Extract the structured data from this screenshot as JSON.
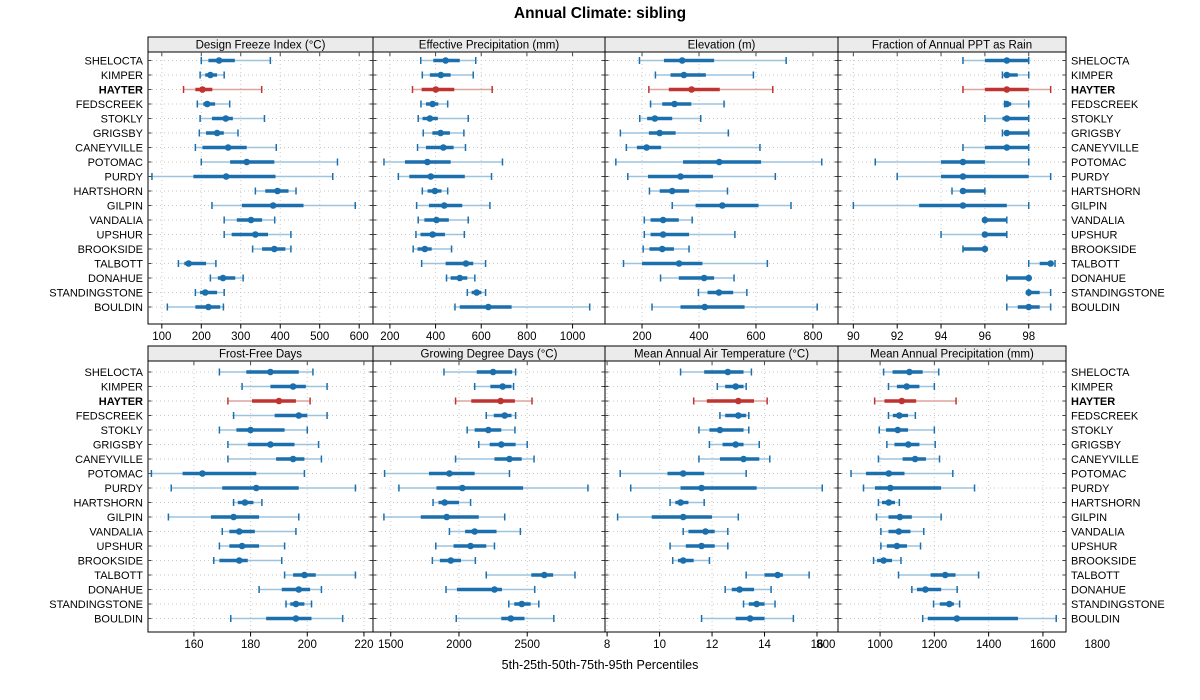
{
  "title": "Annual Climate: sibling",
  "xlabel": "5th-25th-50th-75th-95th Percentiles",
  "colors": {
    "accent_blue": "#1b6fad",
    "accent_blue_light": "#9dc4dd",
    "highlight_red": "#bf3430",
    "highlight_red_light": "#dea49d",
    "strip_bg": "#ebebeb",
    "grid": "#c9c9c9",
    "border": "#000000",
    "tick": "#444444"
  },
  "chart_data": {
    "type": "scatter",
    "subtype": "percentile-dotplot-trellis",
    "percentile_labels": [
      "5th",
      "25th",
      "50th",
      "75th",
      "95th"
    ],
    "legend_position": "none",
    "grid": "dotted both axes",
    "highlight": "HAYTER",
    "categories": [
      "SHELOCTA",
      "KIMPER",
      "HAYTER",
      "FEDSCREEK",
      "STOKLY",
      "GRIGSBY",
      "CANEYVILLE",
      "POTOMAC",
      "PURDY",
      "HARTSHORN",
      "GILPIN",
      "VANDALIA",
      "UPSHUR",
      "BROOKSIDE",
      "TALBOTT",
      "DONAHUE",
      "STANDINGSTONE",
      "BOULDIN"
    ],
    "panels": [
      {
        "id": "design-freeze-index",
        "title": "Design Freeze Index (°C)",
        "xlim": [
          65,
          635
        ],
        "ticks": [
          100,
          200,
          300,
          400,
          500,
          600
        ],
        "values": [
          [
            200,
            218,
            245,
            285,
            375
          ],
          [
            197,
            210,
            223,
            240,
            258
          ],
          [
            155,
            185,
            203,
            228,
            353
          ],
          [
            190,
            205,
            215,
            235,
            272
          ],
          [
            197,
            227,
            262,
            280,
            360
          ],
          [
            195,
            212,
            240,
            257,
            293
          ],
          [
            185,
            203,
            268,
            315,
            390
          ],
          [
            200,
            273,
            315,
            385,
            545
          ],
          [
            75,
            180,
            263,
            388,
            533
          ],
          [
            337,
            362,
            393,
            421,
            440
          ],
          [
            227,
            303,
            382,
            459,
            590
          ],
          [
            258,
            290,
            326,
            354,
            386
          ],
          [
            258,
            277,
            337,
            369,
            427
          ],
          [
            330,
            354,
            385,
            413,
            427
          ],
          [
            142,
            157,
            168,
            212,
            237
          ],
          [
            223,
            242,
            255,
            286,
            306
          ],
          [
            185,
            197,
            210,
            240,
            258
          ],
          [
            114,
            185,
            218,
            248,
            256
          ]
        ]
      },
      {
        "id": "effective-precipitation",
        "title": "Effective Precipitation (mm)",
        "xlim": [
          126,
          1142
        ],
        "ticks": [
          200,
          400,
          600,
          800,
          1000
        ],
        "values": [
          [
            335,
            390,
            444,
            506,
            576
          ],
          [
            342,
            375,
            423,
            466,
            565
          ],
          [
            299,
            339,
            401,
            482,
            648
          ],
          [
            336,
            358,
            387,
            412,
            453
          ],
          [
            324,
            343,
            375,
            410,
            543
          ],
          [
            346,
            386,
            422,
            463,
            524
          ],
          [
            321,
            358,
            434,
            479,
            531
          ],
          [
            174,
            266,
            364,
            466,
            693
          ],
          [
            237,
            285,
            379,
            528,
            645
          ],
          [
            342,
            365,
            397,
            426,
            453
          ],
          [
            317,
            371,
            438,
            517,
            638
          ],
          [
            324,
            351,
            404,
            458,
            543
          ],
          [
            314,
            334,
            387,
            441,
            526
          ],
          [
            302,
            321,
            353,
            383,
            470
          ],
          [
            339,
            444,
            533,
            565,
            619
          ],
          [
            448,
            466,
            506,
            539,
            572
          ],
          [
            539,
            558,
            580,
            601,
            619
          ],
          [
            485,
            506,
            631,
            733,
            1075
          ]
        ]
      },
      {
        "id": "elevation",
        "title": "Elevation (m)",
        "xlim": [
          70,
          888
        ],
        "ticks": [
          200,
          400,
          600,
          800
        ],
        "values": [
          [
            191,
            277,
            341,
            453,
            706
          ],
          [
            247,
            300,
            347,
            424,
            591
          ],
          [
            224,
            294,
            374,
            473,
            659
          ],
          [
            230,
            271,
            314,
            373,
            488
          ],
          [
            192,
            218,
            245,
            306,
            406
          ],
          [
            124,
            224,
            262,
            318,
            503
          ],
          [
            145,
            182,
            216,
            267,
            614
          ],
          [
            108,
            344,
            471,
            618,
            831
          ],
          [
            150,
            221,
            335,
            449,
            668
          ],
          [
            226,
            262,
            306,
            365,
            500
          ],
          [
            306,
            388,
            482,
            609,
            723
          ],
          [
            208,
            230,
            274,
            329,
            376
          ],
          [
            208,
            230,
            274,
            365,
            526
          ],
          [
            204,
            226,
            271,
            312,
            365
          ],
          [
            135,
            200,
            330,
            412,
            640
          ],
          [
            265,
            329,
            418,
            453,
            523
          ],
          [
            398,
            430,
            470,
            520,
            568
          ],
          [
            235,
            335,
            420,
            560,
            815
          ]
        ]
      },
      {
        "id": "fraction-ppt-rain",
        "title": "Fraction of Annual PPT as Rain",
        "xlim": [
          89.3,
          99.7
        ],
        "ticks": [
          90,
          92,
          94,
          96,
          98
        ],
        "values": [
          [
            95,
            96,
            97,
            98,
            98
          ],
          [
            96.8,
            97,
            97,
            97.5,
            98
          ],
          [
            95,
            96,
            97,
            98,
            99
          ],
          [
            96.9,
            97,
            97,
            97.2,
            98
          ],
          [
            96,
            96.8,
            97,
            98,
            98
          ],
          [
            96.8,
            97,
            97,
            98,
            98
          ],
          [
            95,
            96,
            97,
            98,
            98
          ],
          [
            91,
            94,
            95,
            96,
            98
          ],
          [
            92,
            94,
            95,
            98,
            99
          ],
          [
            94.5,
            95,
            95,
            96,
            96
          ],
          [
            90,
            93,
            95,
            97,
            98
          ],
          [
            96,
            96,
            96,
            97,
            97
          ],
          [
            94,
            96,
            96,
            97,
            97
          ],
          [
            95,
            95,
            96,
            96,
            96
          ],
          [
            98,
            98.5,
            99,
            99,
            99.2
          ],
          [
            97,
            97,
            98,
            98,
            98
          ],
          [
            98,
            98,
            98,
            98.5,
            99
          ],
          [
            97,
            97.5,
            98,
            98.5,
            99
          ]
        ]
      },
      {
        "id": "frost-free-days",
        "title": "Frost-Free Days",
        "xlim": [
          143.8,
          223.2
        ],
        "ticks": [
          160,
          180,
          200,
          220
        ],
        "values": [
          [
            169,
            178.5,
            187,
            197,
            202
          ],
          [
            177,
            187,
            195,
            199.5,
            207
          ],
          [
            172,
            180.5,
            190,
            196,
            201
          ],
          [
            174,
            188.5,
            197,
            200,
            207
          ],
          [
            169,
            175,
            180,
            192,
            200
          ],
          [
            172,
            179,
            187,
            195.5,
            204
          ],
          [
            172,
            189,
            195,
            199,
            205
          ],
          [
            145,
            156,
            163,
            182,
            199
          ],
          [
            152,
            170,
            182,
            197,
            217
          ],
          [
            174,
            175.5,
            178,
            181,
            184
          ],
          [
            151,
            166,
            174,
            183,
            197
          ],
          [
            170,
            172.5,
            176,
            181.5,
            196
          ],
          [
            169,
            172.5,
            177,
            183,
            192
          ],
          [
            167,
            169,
            176,
            179,
            191
          ],
          [
            192,
            195,
            199,
            203,
            217
          ],
          [
            183,
            191,
            197,
            201,
            205
          ],
          [
            192.5,
            194,
            196,
            199,
            201.5
          ],
          [
            173,
            185.5,
            196,
            201.5,
            212.5
          ]
        ]
      },
      {
        "id": "growing-degree-days",
        "title": "Growing Degree Days (°C)",
        "xlim": [
          1370,
          3070
        ],
        "ticks": [
          1500,
          2000,
          2500
        ],
        "values": [
          [
            1890,
            2130,
            2250,
            2390,
            2415
          ],
          [
            2115,
            2230,
            2320,
            2385,
            2400
          ],
          [
            1975,
            2090,
            2305,
            2410,
            2535
          ],
          [
            2200,
            2255,
            2335,
            2385,
            2415
          ],
          [
            2060,
            2115,
            2215,
            2310,
            2410
          ],
          [
            2145,
            2225,
            2310,
            2415,
            2500
          ],
          [
            1975,
            2260,
            2370,
            2460,
            2550
          ],
          [
            1455,
            1780,
            1930,
            2115,
            2370
          ],
          [
            1560,
            1835,
            2025,
            2470,
            2945
          ],
          [
            1810,
            1850,
            1895,
            2000,
            2085
          ],
          [
            1450,
            1720,
            1910,
            2145,
            2335
          ],
          [
            1930,
            2045,
            2115,
            2275,
            2450
          ],
          [
            1830,
            1960,
            2085,
            2200,
            2260
          ],
          [
            1805,
            1860,
            1940,
            2015,
            2120
          ],
          [
            2200,
            2530,
            2625,
            2690,
            2850
          ],
          [
            1905,
            1985,
            2260,
            2315,
            2555
          ],
          [
            2365,
            2405,
            2460,
            2525,
            2585
          ],
          [
            1980,
            2310,
            2380,
            2480,
            2695
          ]
        ]
      },
      {
        "id": "mean-annual-air-temperature",
        "title": "Mean Annual Air Temperature (°C)",
        "xlim": [
          7.92,
          16.8
        ],
        "ticks": [
          8,
          10,
          12,
          14,
          16
        ],
        "values": [
          [
            10.8,
            11.7,
            12.6,
            13.2,
            13.5
          ],
          [
            12.2,
            12.5,
            12.9,
            13.2,
            13.3
          ],
          [
            11.3,
            11.8,
            13.0,
            13.6,
            14.1
          ],
          [
            12.3,
            12.5,
            13.0,
            13.3,
            13.4
          ],
          [
            11.5,
            11.9,
            12.3,
            13.2,
            13.4
          ],
          [
            11.9,
            12.4,
            12.9,
            13.2,
            13.8
          ],
          [
            11.5,
            12.3,
            13.2,
            13.8,
            14.2
          ],
          [
            8.5,
            10.3,
            10.9,
            11.7,
            13.3
          ],
          [
            8.9,
            10.8,
            11.6,
            13.7,
            16.2
          ],
          [
            10.4,
            10.6,
            10.8,
            11.1,
            11.7
          ],
          [
            8.4,
            9.7,
            10.9,
            12.0,
            13.0
          ],
          [
            10.9,
            11.1,
            11.75,
            12.1,
            12.6
          ],
          [
            10.4,
            11.0,
            11.6,
            12.1,
            12.6
          ],
          [
            10.5,
            10.7,
            10.9,
            11.3,
            11.9
          ],
          [
            13.3,
            14.0,
            14.5,
            14.7,
            15.7
          ],
          [
            12.5,
            12.75,
            13.05,
            13.6,
            14.25
          ],
          [
            13.2,
            13.4,
            13.7,
            14.0,
            14.4
          ],
          [
            11.6,
            12.9,
            13.45,
            14.0,
            15.1
          ]
        ]
      },
      {
        "id": "mean-annual-precipitation",
        "title": "Mean Annual Precipitation (mm)",
        "xlim": [
          845,
          1685
        ],
        "ticks": [
          800,
          1000,
          1200,
          1400,
          1600,
          1800
        ],
        "values": [
          [
            1013,
            1046,
            1108,
            1157,
            1216
          ],
          [
            1031,
            1062,
            1098,
            1145,
            1200
          ],
          [
            980,
            1016,
            1080,
            1133,
            1280
          ],
          [
            1031,
            1047,
            1071,
            1103,
            1130
          ],
          [
            997,
            1022,
            1065,
            1103,
            1200
          ],
          [
            1025,
            1053,
            1104,
            1145,
            1203
          ],
          [
            994,
            1083,
            1129,
            1169,
            1219
          ],
          [
            893,
            948,
            1032,
            1090,
            1268
          ],
          [
            939,
            981,
            1038,
            1225,
            1348
          ],
          [
            994,
            1007,
            1032,
            1055,
            1071
          ],
          [
            987,
            1031,
            1073,
            1117,
            1225
          ],
          [
            1003,
            1031,
            1069,
            1112,
            1161
          ],
          [
            1003,
            1025,
            1062,
            1099,
            1149
          ],
          [
            976,
            989,
            1013,
            1044,
            1077
          ],
          [
            1068,
            1186,
            1240,
            1278,
            1363
          ],
          [
            1117,
            1136,
            1167,
            1225,
            1284
          ],
          [
            1197,
            1220,
            1255,
            1272,
            1293
          ],
          [
            1157,
            1176,
            1283,
            1508,
            1649
          ]
        ]
      }
    ]
  }
}
